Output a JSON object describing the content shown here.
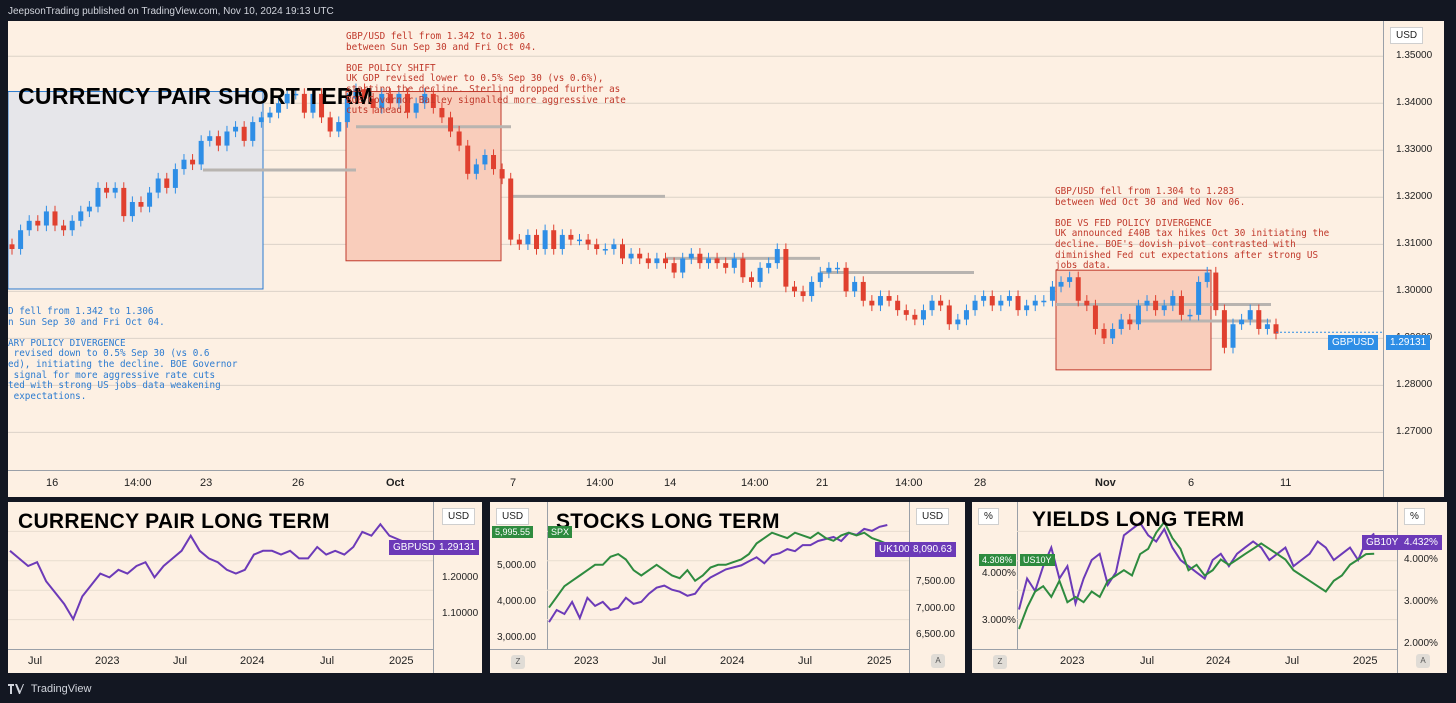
{
  "header": {
    "text": "JeepsonTrading published on TradingView.com, Nov 10, 2024 19:13 UTC"
  },
  "footer": {
    "brand": "TradingView"
  },
  "colors": {
    "up": "#2e8ee6",
    "down": "#e0402f",
    "purple": "#6c3ab8",
    "green": "#2e8b3f",
    "bg": "#fdf0e3"
  },
  "main": {
    "title": "CURRENCY PAIR SHORT TERM",
    "currency": "USD",
    "price_ticks": [
      "1.35000",
      "1.34000",
      "1.33000",
      "1.32000",
      "1.31000",
      "1.30000",
      "1.29000",
      "1.28000",
      "1.27000"
    ],
    "time_ticks": [
      "16",
      "14:00",
      "23",
      "26",
      "Oct",
      "7",
      "14:00",
      "14",
      "14:00",
      "21",
      "14:00",
      "28",
      "Nov",
      "6",
      "11"
    ],
    "symbol_badge": "GBPUSD",
    "last_price": "1.29131",
    "note1": "GBP/USD fell from 1.342 to 1.306\nbetween Sun Sep 30 and Fri Oct 04.\n\nBOE POLICY SHIFT\nUK GDP revised lower to 0.5% Sep 30 (vs 0.6%),\nstarting the decline. Sterling dropped further as\nBOE Governor Bailey signalled more aggressive rate\ncuts ahead.",
    "note2": "GBP/USD fell from 1.304 to 1.283\nbetween Wed Oct 30 and Wed Nov 06.\n\nBOE VS FED POLICY DIVERGENCE\nUK announced £40B tax hikes Oct 30 initiating the\ndecline. BOE's dovish pivot contrasted with\ndiminished Fed cut expectations after strong US\njobs data.",
    "note3": "D fell from 1.342 to 1.306\nn Sun Sep 30 and Fri Oct 04.\n\nARY POLICY DIVERGENCE\n revised down to 0.5% Sep 30 (vs 0.6\ned), initiating the decline. BOE Governor\n signal for more aggressive rate cuts\nted with strong US jobs data weakening\n expectations."
  },
  "panels": [
    {
      "title": "CURRENCY PAIR LONG TERM",
      "currency": "USD",
      "price_ticks": [
        "1.20000",
        "1.10000"
      ],
      "time_ticks": [
        "Jul",
        "2023",
        "Jul",
        "2024",
        "Jul",
        "2025"
      ],
      "badge": "GBPUSD",
      "badge_value": "1.29131"
    },
    {
      "title": "STOCKS LONG TERM",
      "currency_left": "USD",
      "currency_right": "USD",
      "left_ticks": [
        "5,000.00",
        "4,000.00",
        "3,000.00"
      ],
      "right_ticks": [
        "7,500.00",
        "7,000.00",
        "6,500.00"
      ],
      "time_ticks": [
        "2023",
        "Jul",
        "2024",
        "Jul",
        "2025"
      ],
      "left_label": "SPX",
      "left_value": "5,995.55",
      "badge": "UK100",
      "badge_value": "8,090.63",
      "z": "Z",
      "a": "A"
    },
    {
      "title": "YIELDS LONG TERM",
      "currency_left": "%",
      "currency_right": "%",
      "left_ticks": [
        "4.000%",
        "3.000%"
      ],
      "right_ticks": [
        "4.000%",
        "3.000%",
        "2.000%"
      ],
      "time_ticks": [
        "2023",
        "Jul",
        "2024",
        "Jul",
        "2025"
      ],
      "left_label": "US10Y",
      "left_value": "4.308%",
      "badge": "GB10Y",
      "badge_value": "4.432%",
      "z": "Z",
      "a": "A"
    }
  ],
  "chart_data": [
    {
      "type": "candlestick",
      "title": "CURRENCY PAIR SHORT TERM",
      "series": [
        {
          "name": "GBPUSD",
          "close": [
            1.309,
            1.313,
            1.315,
            1.314,
            1.317,
            1.314,
            1.313,
            1.315,
            1.317,
            1.318,
            1.322,
            1.321,
            1.322,
            1.316,
            1.319,
            1.318,
            1.321,
            1.324,
            1.322,
            1.326,
            1.328,
            1.327,
            1.332,
            1.333,
            1.331,
            1.334,
            1.335,
            1.332,
            1.336,
            1.337,
            1.338,
            1.34,
            1.342,
            1.342,
            1.338,
            1.342,
            1.337,
            1.334,
            1.336,
            1.341,
            1.343,
            1.341,
            1.339,
            1.342,
            1.34,
            1.342,
            1.338,
            1.34,
            1.342,
            1.339,
            1.337,
            1.334,
            1.331,
            1.325,
            1.327,
            1.329,
            1.326,
            1.324,
            1.311,
            1.31,
            1.312,
            1.309,
            1.313,
            1.309,
            1.312,
            1.311,
            1.311,
            1.31,
            1.309,
            1.309,
            1.31,
            1.307,
            1.308,
            1.307,
            1.306,
            1.307,
            1.306,
            1.304,
            1.307,
            1.308,
            1.306,
            1.307,
            1.306,
            1.305,
            1.307,
            1.303,
            1.302,
            1.305,
            1.306,
            1.309,
            1.301,
            1.3,
            1.299,
            1.302,
            1.304,
            1.305,
            1.305,
            1.3,
            1.302,
            1.298,
            1.297,
            1.299,
            1.298,
            1.296,
            1.295,
            1.294,
            1.296,
            1.298,
            1.297,
            1.293,
            1.294,
            1.296,
            1.298,
            1.299,
            1.297,
            1.298,
            1.299,
            1.296,
            1.297,
            1.298,
            1.298,
            1.301,
            1.302,
            1.303,
            1.298,
            1.297,
            1.292,
            1.29,
            1.292,
            1.294,
            1.293,
            1.297,
            1.298,
            1.296,
            1.297,
            1.299,
            1.295,
            1.295,
            1.302,
            1.304,
            1.296,
            1.288,
            1.293,
            1.294,
            1.296,
            1.292,
            1.293,
            1.291
          ],
          "notes": [
            "GBP/USD fell from 1.342 to 1.306 between Sun Sep 30 and Fri Oct 04.",
            "GBP/USD fell from 1.304 to 1.283 between Wed Oct 30 and Wed Nov 06."
          ]
        }
      ],
      "y_ticks": [
        "1.35000",
        "1.34000",
        "1.33000",
        "1.32000",
        "1.31000",
        "1.30000",
        "1.29000",
        "1.28000",
        "1.27000"
      ]
    },
    {
      "type": "line",
      "title": "CURRENCY PAIR LONG TERM",
      "series": [
        {
          "name": "GBPUSD",
          "values": [
            1.27,
            1.25,
            1.23,
            1.24,
            1.19,
            1.16,
            1.13,
            1.09,
            1.15,
            1.18,
            1.21,
            1.2,
            1.22,
            1.21,
            1.23,
            1.24,
            1.2,
            1.23,
            1.25,
            1.27,
            1.31,
            1.27,
            1.25,
            1.24,
            1.22,
            1.21,
            1.22,
            1.26,
            1.27,
            1.27,
            1.26,
            1.27,
            1.25,
            1.25,
            1.28,
            1.26,
            1.27,
            1.26,
            1.28,
            1.32,
            1.31,
            1.34,
            1.31,
            1.3,
            1.29
          ]
        }
      ],
      "y_ticks": [
        "1.20000",
        "1.10000"
      ]
    },
    {
      "type": "line",
      "title": "STOCKS LONG TERM",
      "series": [
        {
          "name": "SPX",
          "values": [
            3600,
            3900,
            3800,
            4100,
            3700,
            4200,
            4000,
            4100,
            3900,
            3950,
            4200,
            4050,
            4100,
            4300,
            4450,
            4500,
            4400,
            4350,
            4250,
            4300,
            4550,
            4700,
            4800,
            4900,
            4950,
            5000,
            5100,
            5200,
            5050,
            5250,
            5300,
            5400,
            5350,
            5500,
            5500,
            5600,
            5650,
            5700,
            5600,
            5800,
            5750,
            5900,
            5850,
            5950,
            5995
          ]
        },
        {
          "name": "UK100",
          "values": [
            6900,
            7100,
            7300,
            7400,
            7500,
            7600,
            7700,
            7700,
            7850,
            7900,
            7800,
            7600,
            7500,
            7600,
            7700,
            7600,
            7500,
            7450,
            7600,
            7400,
            7500,
            7650,
            7700,
            7700,
            7750,
            7800,
            7900,
            8100,
            8200,
            8300,
            8250,
            8200,
            8300,
            8250,
            8200,
            8300,
            8200,
            8150,
            8250,
            8300,
            8250,
            8300,
            8200,
            8150,
            8090
          ]
        }
      ],
      "y_ticks_left": [
        "5,000.00",
        "4,000.00",
        "3,000.00"
      ],
      "y_ticks_right": [
        "7,500.00",
        "7,000.00",
        "6,500.00"
      ]
    },
    {
      "type": "line",
      "title": "YIELDS LONG TERM",
      "series": [
        {
          "name": "GB10Y",
          "values": [
            3.2,
            3.7,
            3.5,
            3.9,
            4.2,
            3.7,
            3.9,
            3.3,
            3.7,
            4.0,
            4.1,
            3.6,
            3.8,
            4.4,
            4.5,
            4.6,
            4.4,
            4.3,
            4.5,
            4.2,
            4.0,
            3.9,
            3.8,
            3.7,
            4.0,
            4.1,
            3.9,
            4.1,
            4.2,
            4.3,
            4.2,
            4.0,
            4.1,
            4.2,
            3.9,
            4.0,
            4.1,
            4.3,
            4.2,
            4.0,
            4.1,
            4.2,
            4.0,
            4.3,
            4.43
          ]
        },
        {
          "name": "US10Y",
          "values": [
            2.9,
            3.3,
            3.6,
            3.7,
            3.5,
            3.8,
            3.4,
            3.5,
            3.4,
            3.6,
            3.5,
            3.8,
            3.9,
            4.0,
            3.9,
            4.3,
            4.4,
            4.7,
            4.9,
            4.6,
            4.4,
            4.0,
            4.1,
            3.9,
            4.0,
            4.2,
            4.1,
            4.2,
            4.3,
            4.4,
            4.5,
            4.4,
            4.3,
            4.2,
            4.0,
            3.9,
            3.8,
            3.7,
            3.6,
            3.8,
            3.9,
            4.1,
            4.2,
            4.3,
            4.308
          ]
        }
      ],
      "y_ticks_left": [
        "4.000%",
        "3.000%"
      ],
      "y_ticks_right": [
        "4.000%",
        "3.000%",
        "2.000%"
      ]
    }
  ]
}
